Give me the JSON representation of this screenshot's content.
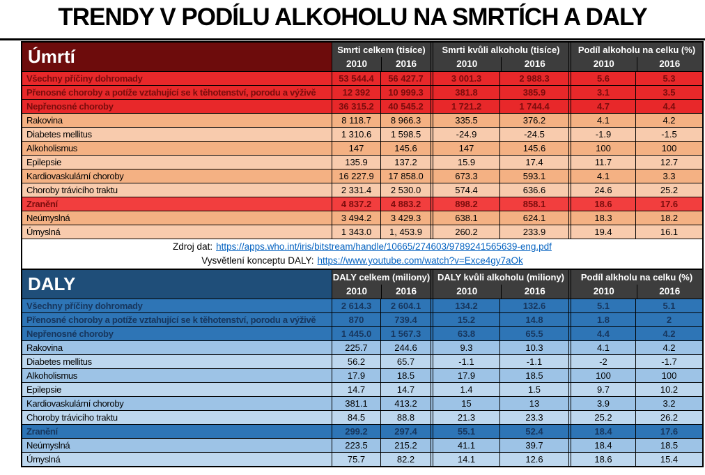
{
  "title": "TRENDY V PODÍLU ALKOHOLU NA SMRTÍCH A DALY",
  "link_color": "#0563c1",
  "sources": [
    {
      "prefix": "Zdroj dat:",
      "link": "https://apps.who.int/iris/bitstream/handle/10665/274603/9789241565639-eng.pdf"
    },
    {
      "prefix": "Vysvětlení konceptu DALY:",
      "link": "https://www.youtube.com/watch?v=Exce4gy7aOk"
    }
  ],
  "chart_data": [
    {
      "type": "table",
      "title": "Úmrtí",
      "colors": {
        "header_bg": "#6d0c0c",
        "colhead_bg": "#3d3d3d",
        "accent_bg": "#e8282a",
        "accent2_bg": "#f23e3e",
        "accent_text": "#7a0c0c",
        "row_a_bg": "#f4b183",
        "row_b_bg": "#f8cbad"
      },
      "column_groups": [
        {
          "label": "Smrti celkem (tisíce)",
          "years": [
            "2010",
            "2016"
          ]
        },
        {
          "label": "Smrti kvůli alkoholu (tisíce)",
          "years": [
            "2010",
            "2016"
          ]
        },
        {
          "label": "Podíl alkoholu na celku (%)",
          "years": [
            "2010",
            "2016"
          ]
        }
      ],
      "rows": [
        {
          "label": "Všechny příčiny dohromady",
          "values": [
            "53 544.4",
            "56 427.7",
            "3 001.3",
            "2 988.3",
            "5.6",
            "5.3"
          ],
          "style": "accent",
          "underline": true
        },
        {
          "label": "Přenosné choroby a potíže vztahující se k těhotenství, porodu a výživě",
          "values": [
            "12 392",
            "10 999.3",
            "381.8",
            "385.9",
            "3.1",
            "3.5"
          ],
          "style": "accent",
          "underline": false
        },
        {
          "label": "Nepřenosné choroby",
          "values": [
            "36 315.2",
            "40 545.2",
            "1 721.2",
            "1 744.4",
            "4.7",
            "4.4"
          ],
          "style": "accent",
          "underline": false
        },
        {
          "label": "Rakovina",
          "values": [
            "8 118.7",
            "8 966.3",
            "335.5",
            "376.2",
            "4.1",
            "4.2"
          ],
          "style": "a",
          "underline": false
        },
        {
          "label": "Diabetes mellitus",
          "values": [
            "1 310.6",
            "1 598.5",
            "-24.9",
            "-24.5",
            "-1.9",
            "-1.5"
          ],
          "style": "b",
          "underline": false
        },
        {
          "label": "Alkoholismus",
          "values": [
            "147",
            "145.6",
            "147",
            "145.6",
            "100",
            "100"
          ],
          "style": "a",
          "underline": false
        },
        {
          "label": "Epilepsie",
          "values": [
            "135.9",
            "137.2",
            "15.9",
            "17.4",
            "11.7",
            "12.7"
          ],
          "style": "b",
          "underline": false
        },
        {
          "label": "Kardiovaskulární choroby",
          "values": [
            "16 227.9",
            "17 858.0",
            "673.3",
            "593.1",
            "4.1",
            "3.3"
          ],
          "style": "a",
          "underline": false
        },
        {
          "label": "Choroby trávicího traktu",
          "values": [
            "2 331.4",
            "2 530.0",
            "574.4",
            "636.6",
            "24.6",
            "25.2"
          ],
          "style": "b",
          "underline": false
        },
        {
          "label": "Zranění",
          "values": [
            "4 837.2",
            "4 883.2",
            "898.2",
            "858.1",
            "18.6",
            "17.6"
          ],
          "style": "accent2",
          "underline": false
        },
        {
          "label": "Neúmyslná",
          "values": [
            "3 494.2",
            "3 429.3",
            "638.1",
            "624.1",
            "18.3",
            "18.2"
          ],
          "style": "a",
          "underline": false
        },
        {
          "label": "Úmyslná",
          "values": [
            "1 343.0",
            "1, 453.9",
            "260.2",
            "233.9",
            "19.4",
            "16.1"
          ],
          "style": "b",
          "underline": false
        }
      ]
    },
    {
      "type": "table",
      "title": "DALY",
      "colors": {
        "header_bg": "#1f4e79",
        "colhead_bg": "#3d3d3d",
        "accent_bg": "#2e75b6",
        "accent2_bg": "#2e75b6",
        "accent_text": "#17365d",
        "row_a_bg": "#9dc3e6",
        "row_b_bg": "#bdd7ee"
      },
      "column_groups": [
        {
          "label": "DALY celkem (miliony)",
          "years": [
            "2010",
            "2016"
          ]
        },
        {
          "label": "DALY kvůli alkoholu (miliony)",
          "years": [
            "2010",
            "2016"
          ]
        },
        {
          "label": "Podíl alkholu na celku (%)",
          "years": [
            "2010",
            "2016"
          ]
        }
      ],
      "rows": [
        {
          "label": "Všechny příčiny dohromady",
          "values": [
            "2 614.3",
            "2 604.1",
            "134.2",
            "132.6",
            "5.1",
            "5.1"
          ],
          "style": "accent",
          "underline": true
        },
        {
          "label": "Přenosné choroby a potíže vztahující se k těhotenství, porodu a výživě",
          "values": [
            "870",
            "739.4",
            "15.2",
            "14.8",
            "1.8",
            "2"
          ],
          "style": "accent",
          "underline": false
        },
        {
          "label": "Nepřenosné choroby",
          "values": [
            "1 445.0",
            "1 567.3",
            "63.8",
            "65.5",
            "4.4",
            "4.2"
          ],
          "style": "accent",
          "underline": false
        },
        {
          "label": "Rakovina",
          "values": [
            "225.7",
            "244.6",
            "9.3",
            "10.3",
            "4.1",
            "4.2"
          ],
          "style": "a",
          "underline": false
        },
        {
          "label": "Diabetes mellitus",
          "values": [
            "56.2",
            "65.7",
            "-1.1",
            "-1.1",
            "-2",
            "-1.7"
          ],
          "style": "b",
          "underline": false
        },
        {
          "label": "Alkoholismus",
          "values": [
            "17.9",
            "18.5",
            "17.9",
            "18.5",
            "100",
            "100"
          ],
          "style": "a",
          "underline": false
        },
        {
          "label": "Epilepsie",
          "values": [
            "14.7",
            "14.7",
            "1.4",
            "1.5",
            "9.7",
            "10.2"
          ],
          "style": "b",
          "underline": false
        },
        {
          "label": "Kardiovaskulární choroby",
          "values": [
            "381.1",
            "413.2",
            "15",
            "13",
            "3.9",
            "3.2"
          ],
          "style": "a",
          "underline": false
        },
        {
          "label": "Choroby trávicího traktu",
          "values": [
            "84.5",
            "88.8",
            "21.3",
            "23.3",
            "25.2",
            "26.2"
          ],
          "style": "b",
          "underline": false
        },
        {
          "label": "Zranění",
          "values": [
            "299.2",
            "297.4",
            "55.1",
            "52.4",
            "18.4",
            "17.6"
          ],
          "style": "accent2",
          "underline": false
        },
        {
          "label": "Neúmyslná",
          "values": [
            "223.5",
            "215.2",
            "41.1",
            "39.7",
            "18.4",
            "18.5"
          ],
          "style": "a",
          "underline": false
        },
        {
          "label": "Úmyslná",
          "values": [
            "75.7",
            "82.2",
            "14.1",
            "12.6",
            "18.6",
            "15.4"
          ],
          "style": "b",
          "underline": false
        }
      ]
    }
  ]
}
